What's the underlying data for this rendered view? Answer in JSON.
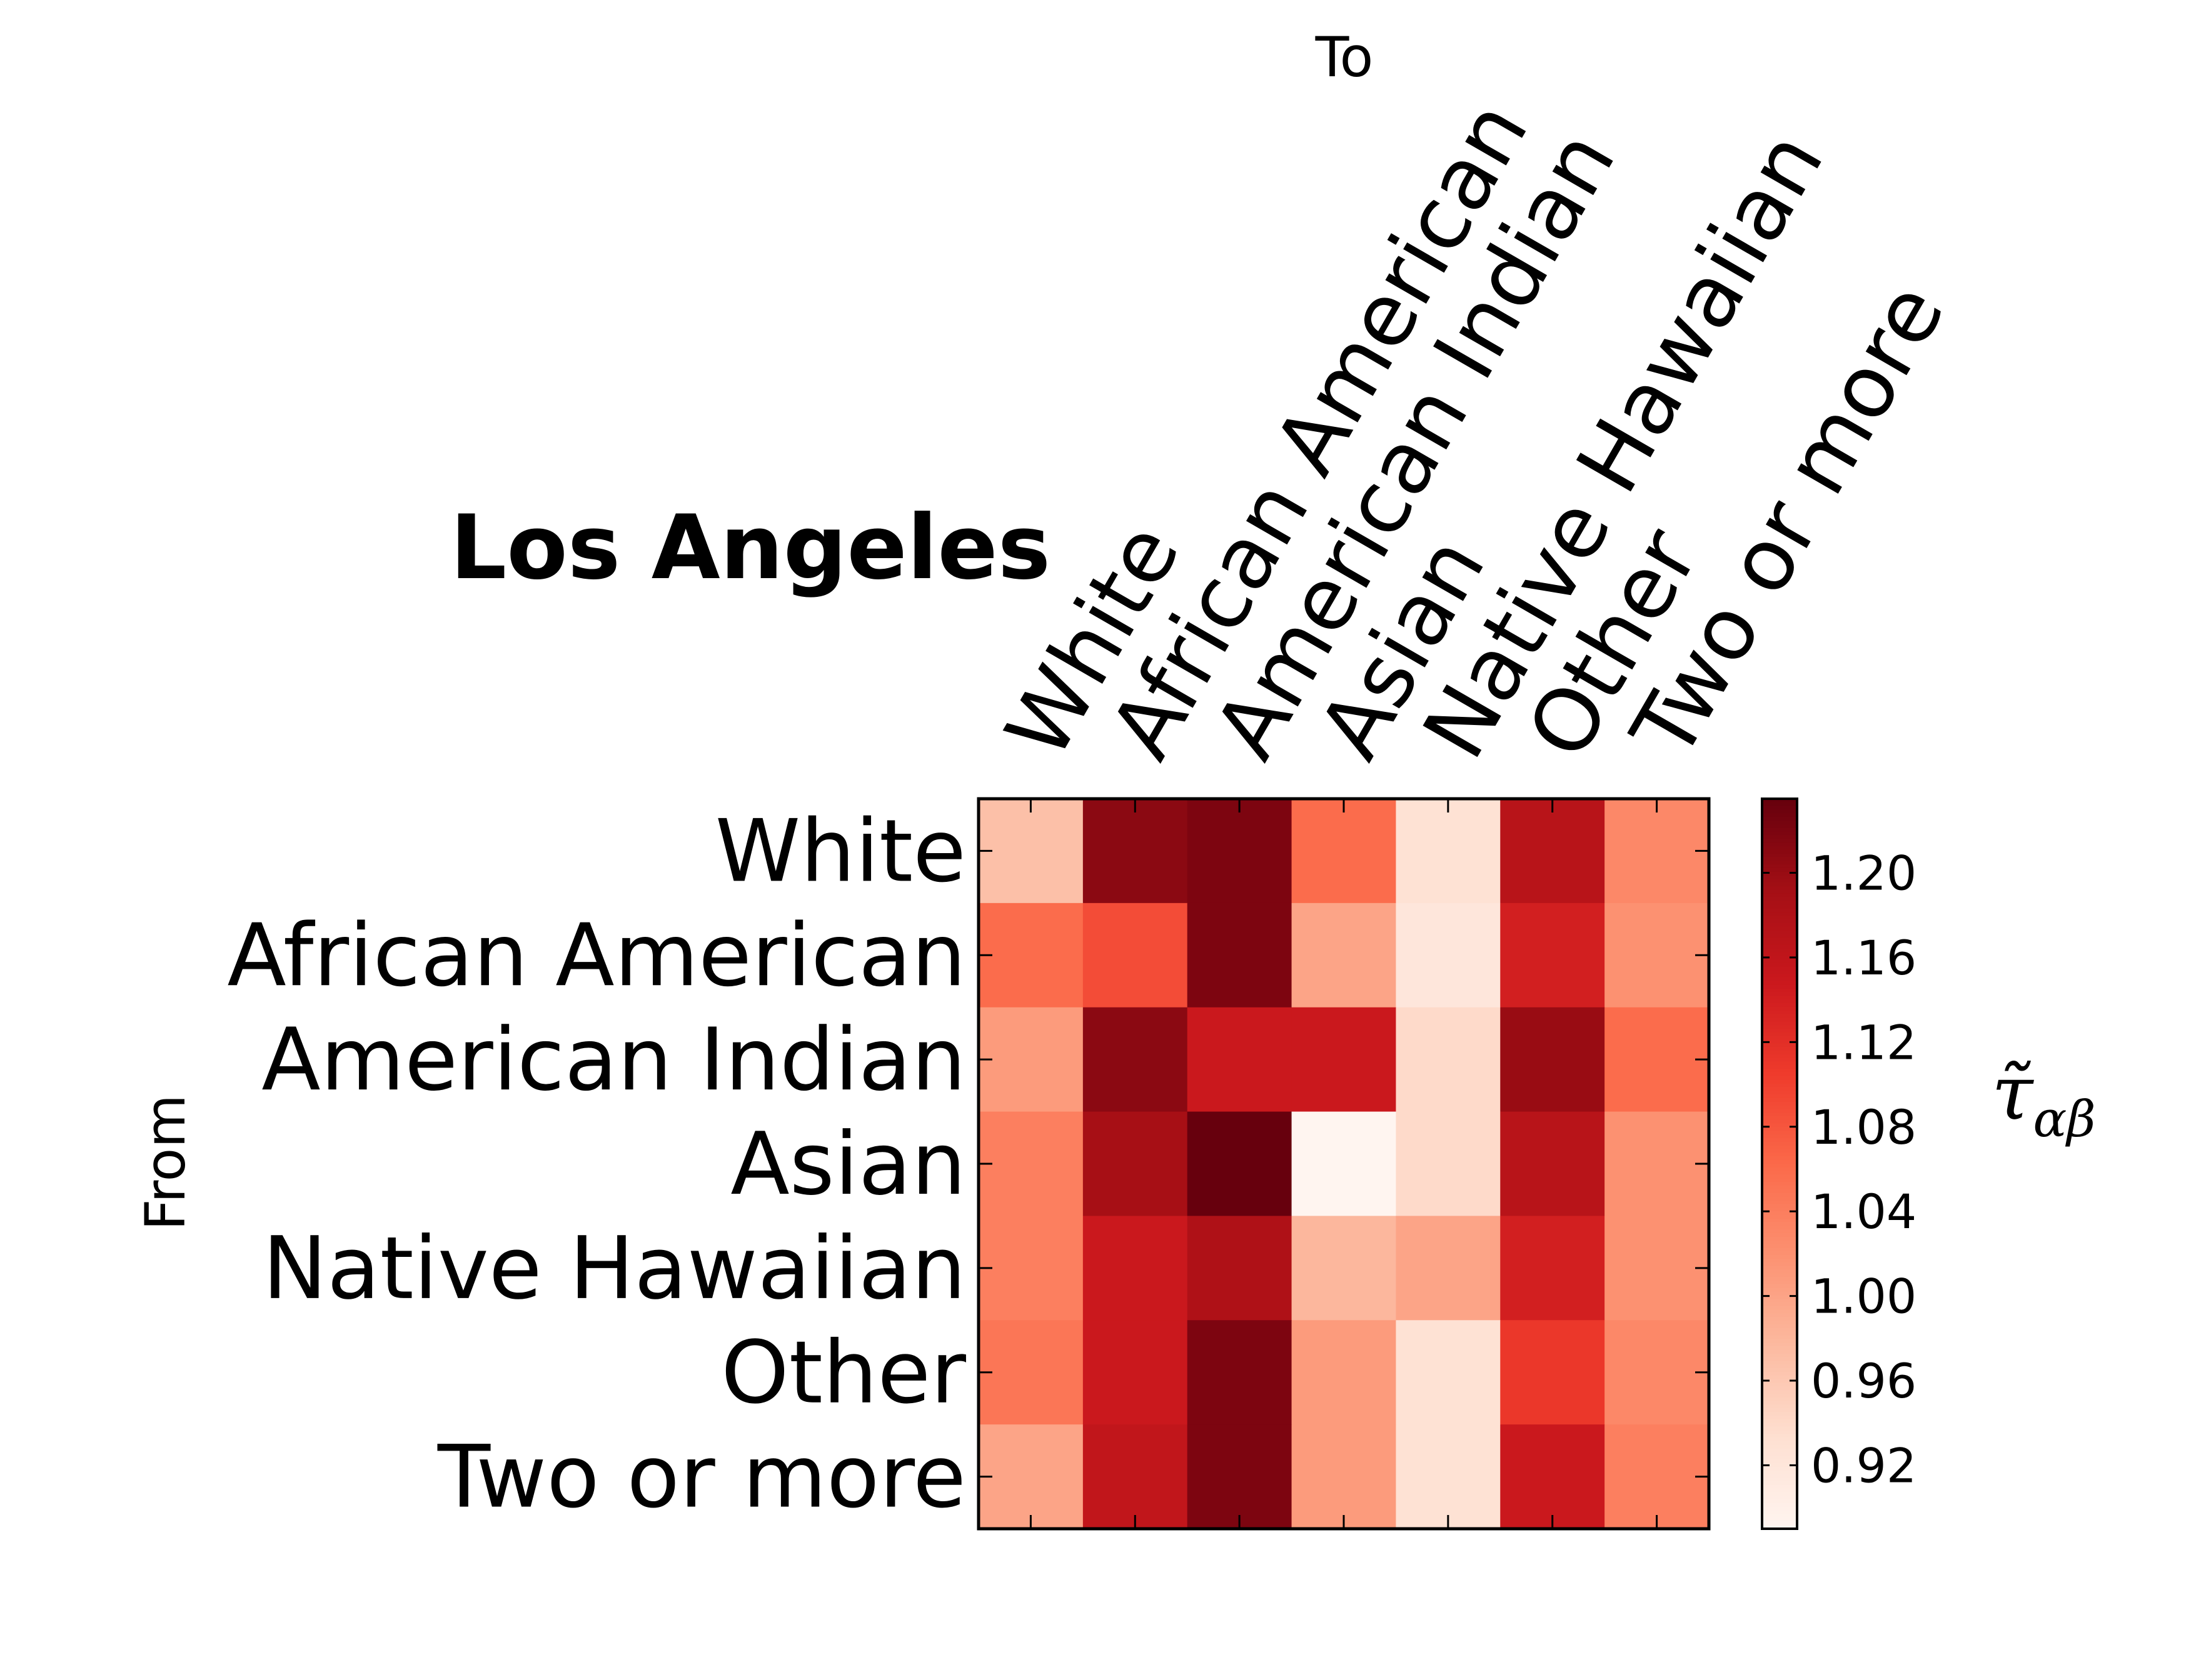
{
  "chart_data": {
    "type": "heatmap",
    "title": "Los Angeles",
    "xlabel": "To",
    "ylabel": "From",
    "x_categories": [
      "White",
      "African American",
      "American Indian",
      "Asian",
      "Native Hawaiian",
      "Other",
      "Two or more"
    ],
    "y_categories": [
      "White",
      "African American",
      "American Indian",
      "Asian",
      "Native Hawaiian",
      "Other",
      "Two or more"
    ],
    "values": [
      [
        0.97,
        1.21,
        1.22,
        1.06,
        0.93,
        1.17,
        1.03
      ],
      [
        1.06,
        1.09,
        1.22,
        1.0,
        0.92,
        1.14,
        1.02
      ],
      [
        1.01,
        1.21,
        1.15,
        1.15,
        0.94,
        1.2,
        1.06
      ],
      [
        1.04,
        1.19,
        1.24,
        0.89,
        0.94,
        1.17,
        1.02
      ],
      [
        1.04,
        1.15,
        1.18,
        0.98,
        1.0,
        1.14,
        1.02
      ],
      [
        1.05,
        1.15,
        1.22,
        1.01,
        0.93,
        1.11,
        1.03
      ],
      [
        1.0,
        1.16,
        1.22,
        1.01,
        0.93,
        1.15,
        1.04
      ]
    ],
    "colorbar": {
      "label": "τ̃αβ",
      "label_symbol": "τ̃",
      "label_subscript": "αβ",
      "ticks": [
        "1.20",
        "1.16",
        "1.12",
        "1.08",
        "1.04",
        "1.00",
        "0.96",
        "0.92"
      ],
      "range": [
        0.89,
        1.235
      ],
      "colormap": "Reds"
    },
    "colors": {
      "low": "#fff5f0",
      "high": "#67000d"
    }
  }
}
